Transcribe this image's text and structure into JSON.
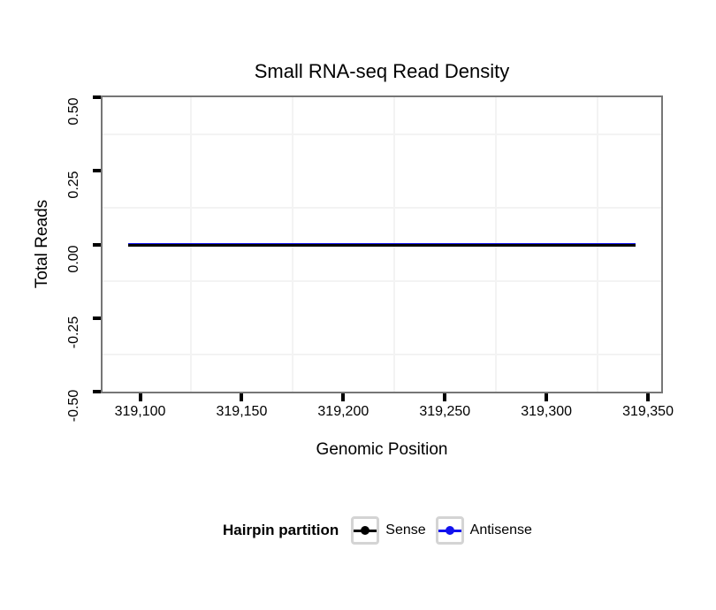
{
  "chart_data": {
    "type": "line",
    "title": "Small RNA-seq Read Density",
    "xlabel": "Genomic Position",
    "ylabel": "Total Reads",
    "xlim": [
      319081.5,
      319356.5
    ],
    "ylim": [
      -0.5,
      0.5
    ],
    "x_ticks": {
      "values": [
        319100,
        319150,
        319200,
        319250,
        319300,
        319350
      ],
      "labels": [
        "319,100",
        "319,150",
        "319,200",
        "319,250",
        "319,300",
        "319,350"
      ]
    },
    "y_ticks": {
      "values": [
        0.5,
        0.25,
        0,
        -0.25,
        -0.5
      ],
      "labels": [
        "0.50",
        "0.25",
        "0.00",
        "-0.25",
        "-0.50"
      ]
    },
    "grid": {
      "major": "none",
      "minor_x": [
        319125,
        319175,
        319225,
        319275,
        319325
      ],
      "minor_y": [
        0.375,
        0.125,
        -0.125,
        -0.375
      ],
      "color": "#f3f3f3"
    },
    "panel_border_color": "#767676",
    "background_color": "#ffffff",
    "series": [
      {
        "name": "Antisense",
        "color": "#1212ee",
        "y": 0,
        "x_start": 319094,
        "x_end": 319344
      },
      {
        "name": "Sense",
        "color": "#000000",
        "y": 0,
        "x_start": 319094,
        "x_end": 319344
      }
    ],
    "legend": {
      "title": "Hairpin partition",
      "position": "bottom",
      "key_border_color": "#d4d4d4",
      "entries": [
        {
          "label": "Sense",
          "color": "#000000",
          "glyph": "line-with-point"
        },
        {
          "label": "Antisense",
          "color": "#1212ee",
          "glyph": "line-with-point"
        }
      ]
    }
  }
}
